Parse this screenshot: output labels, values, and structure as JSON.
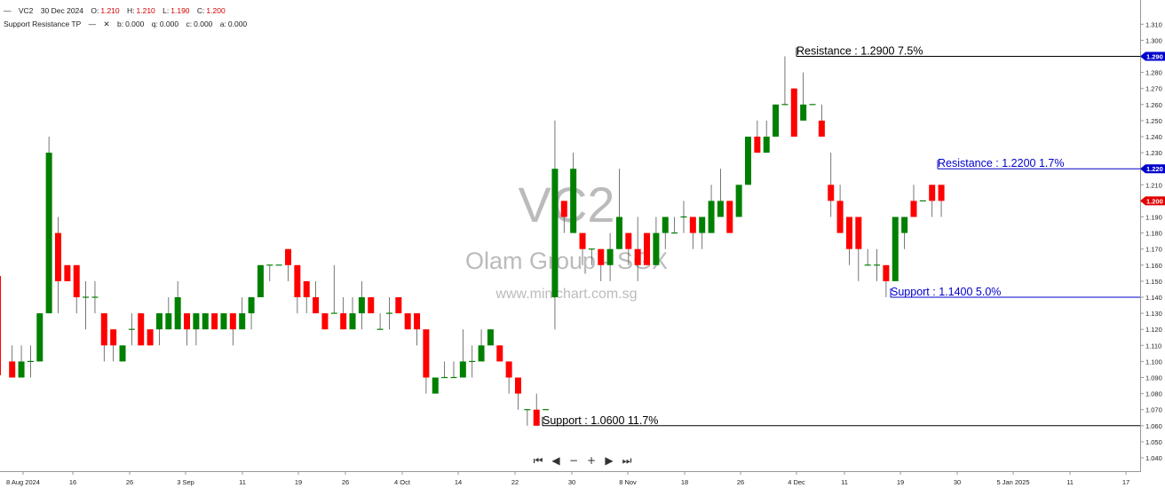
{
  "header": {
    "line1": {
      "icon": "collapse-dash-icon",
      "symbol": "VC2",
      "date": "30 Dec 2024",
      "o_label": "O:",
      "o_value": "1.210",
      "h_label": "H:",
      "h_value": "1.210",
      "l_label": "L:",
      "l_value": "1.190",
      "c_label": "C:",
      "c_value": "1.200"
    },
    "line2": {
      "indicator": "Support Resistance TP",
      "icons": [
        "collapse-dash-icon",
        "close-icon"
      ],
      "b_label": "b:",
      "b_value": "0.000",
      "q_label": "q:",
      "q_value": "0.000",
      "c_label": "c:",
      "c_value": "0.000",
      "a_label": "a:",
      "a_value": "0.000"
    }
  },
  "watermark": {
    "symbol": "VC2",
    "name": "Olam Group - SGX",
    "site": "www.minichart.com.sg"
  },
  "navigation": {
    "buttons": [
      "⏮",
      "◀",
      "−",
      "+",
      "▶",
      "⏭"
    ],
    "icons": [
      "jump-first-icon",
      "scroll-left-icon",
      "zoom-out-icon",
      "zoom-in-icon",
      "scroll-right-icon",
      "jump-last-icon"
    ]
  },
  "colors": {
    "up": "#008000",
    "down": "#ff0000",
    "blue_label": "#0000cc",
    "black_label": "#000000",
    "price_tag_blue": "#0000cc",
    "price_tag_red": "#e00000",
    "watermark": "#bbbbbb"
  },
  "chart_data": {
    "type": "candlestick",
    "ylim": [
      1.04,
      1.31
    ],
    "y_ticks": [
      "1.040",
      "1.050",
      "1.060",
      "1.070",
      "1.080",
      "1.090",
      "1.100",
      "1.110",
      "1.120",
      "1.130",
      "1.140",
      "1.150",
      "1.160",
      "1.170",
      "1.180",
      "1.190",
      "1.200",
      "1.210",
      "1.220",
      "1.230",
      "1.240",
      "1.250",
      "1.260",
      "1.270",
      "1.280",
      "1.290",
      "1.300",
      "1.310"
    ],
    "x_tick_labels": [
      "8 Aug 2024",
      "16",
      "26",
      "3 Sep",
      "11",
      "19",
      "26",
      "4 Oct",
      "14",
      "22",
      "30",
      "8 Nov",
      "18",
      "26",
      "4 Dec",
      "11",
      "19",
      "30",
      "5 Jan 2025",
      "11",
      "17"
    ],
    "price_tags": [
      {
        "value": 1.29,
        "text": "1.290",
        "color": "#0000cc"
      },
      {
        "value": 1.22,
        "text": "1.220",
        "color": "#0000cc"
      },
      {
        "value": 1.2,
        "text": "1.200",
        "color": "#e00000"
      }
    ],
    "levels": [
      {
        "kind": "Resistance",
        "text": "Resistance : 1.2900 7.5%",
        "value": 1.29,
        "color": "#000000"
      },
      {
        "kind": "Resistance",
        "text": "Resistance : 1.2200 1.7%",
        "value": 1.22,
        "color": "#0000cc"
      },
      {
        "kind": "Support",
        "text": "Support : 1.1400 5.0%",
        "value": 1.14,
        "color": "#0000cc"
      },
      {
        "kind": "Support",
        "text": "Support : 1.0600 11.7%",
        "value": 1.06,
        "color": "#000000"
      }
    ],
    "candles": [
      {
        "o": 1.1,
        "h": 1.11,
        "l": 1.09,
        "c": 1.09
      },
      {
        "o": 1.09,
        "h": 1.11,
        "l": 1.09,
        "c": 1.1
      },
      {
        "o": 1.1,
        "h": 1.11,
        "l": 1.09,
        "c": 1.1
      },
      {
        "o": 1.1,
        "h": 1.13,
        "l": 1.1,
        "c": 1.13
      },
      {
        "o": 1.13,
        "h": 1.24,
        "l": 1.13,
        "c": 1.23
      },
      {
        "o": 1.18,
        "h": 1.19,
        "l": 1.13,
        "c": 1.15
      },
      {
        "o": 1.16,
        "h": 1.16,
        "l": 1.15,
        "c": 1.15
      },
      {
        "o": 1.16,
        "h": 1.16,
        "l": 1.13,
        "c": 1.14
      },
      {
        "o": 1.14,
        "h": 1.15,
        "l": 1.12,
        "c": 1.14
      },
      {
        "o": 1.14,
        "h": 1.15,
        "l": 1.13,
        "c": 1.14
      },
      {
        "o": 1.13,
        "h": 1.13,
        "l": 1.1,
        "c": 1.11
      },
      {
        "o": 1.12,
        "h": 1.12,
        "l": 1.1,
        "c": 1.11
      },
      {
        "o": 1.1,
        "h": 1.11,
        "l": 1.1,
        "c": 1.11
      },
      {
        "o": 1.12,
        "h": 1.13,
        "l": 1.11,
        "c": 1.12
      },
      {
        "o": 1.13,
        "h": 1.13,
        "l": 1.11,
        "c": 1.11
      },
      {
        "o": 1.12,
        "h": 1.12,
        "l": 1.11,
        "c": 1.11
      },
      {
        "o": 1.12,
        "h": 1.13,
        "l": 1.11,
        "c": 1.13
      },
      {
        "o": 1.12,
        "h": 1.14,
        "l": 1.12,
        "c": 1.13
      },
      {
        "o": 1.12,
        "h": 1.15,
        "l": 1.12,
        "c": 1.14
      },
      {
        "o": 1.13,
        "h": 1.13,
        "l": 1.11,
        "c": 1.12
      },
      {
        "o": 1.12,
        "h": 1.13,
        "l": 1.11,
        "c": 1.13
      },
      {
        "o": 1.12,
        "h": 1.13,
        "l": 1.12,
        "c": 1.13
      },
      {
        "o": 1.13,
        "h": 1.13,
        "l": 1.12,
        "c": 1.12
      },
      {
        "o": 1.12,
        "h": 1.13,
        "l": 1.12,
        "c": 1.13
      },
      {
        "o": 1.13,
        "h": 1.13,
        "l": 1.11,
        "c": 1.12
      },
      {
        "o": 1.12,
        "h": 1.14,
        "l": 1.12,
        "c": 1.13
      },
      {
        "o": 1.13,
        "h": 1.14,
        "l": 1.12,
        "c": 1.14
      },
      {
        "o": 1.14,
        "h": 1.16,
        "l": 1.14,
        "c": 1.16
      },
      {
        "o": 1.16,
        "h": 1.16,
        "l": 1.15,
        "c": 1.16
      },
      {
        "o": 1.16,
        "h": 1.16,
        "l": 1.16,
        "c": 1.16
      },
      {
        "o": 1.17,
        "h": 1.17,
        "l": 1.15,
        "c": 1.16
      },
      {
        "o": 1.16,
        "h": 1.16,
        "l": 1.13,
        "c": 1.14
      },
      {
        "o": 1.15,
        "h": 1.15,
        "l": 1.13,
        "c": 1.14
      },
      {
        "o": 1.14,
        "h": 1.15,
        "l": 1.13,
        "c": 1.13
      },
      {
        "o": 1.13,
        "h": 1.13,
        "l": 1.12,
        "c": 1.12
      },
      {
        "o": 1.13,
        "h": 1.16,
        "l": 1.13,
        "c": 1.13
      },
      {
        "o": 1.13,
        "h": 1.14,
        "l": 1.12,
        "c": 1.12
      },
      {
        "o": 1.12,
        "h": 1.14,
        "l": 1.12,
        "c": 1.13
      },
      {
        "o": 1.13,
        "h": 1.15,
        "l": 1.12,
        "c": 1.14
      },
      {
        "o": 1.14,
        "h": 1.14,
        "l": 1.13,
        "c": 1.13
      },
      {
        "o": 1.12,
        "h": 1.13,
        "l": 1.12,
        "c": 1.12
      },
      {
        "o": 1.13,
        "h": 1.14,
        "l": 1.12,
        "c": 1.13
      },
      {
        "o": 1.14,
        "h": 1.14,
        "l": 1.13,
        "c": 1.13
      },
      {
        "o": 1.13,
        "h": 1.13,
        "l": 1.12,
        "c": 1.12
      },
      {
        "o": 1.13,
        "h": 1.13,
        "l": 1.11,
        "c": 1.12
      },
      {
        "o": 1.12,
        "h": 1.12,
        "l": 1.08,
        "c": 1.09
      },
      {
        "o": 1.08,
        "h": 1.09,
        "l": 1.08,
        "c": 1.09
      },
      {
        "o": 1.09,
        "h": 1.1,
        "l": 1.09,
        "c": 1.09
      },
      {
        "o": 1.09,
        "h": 1.1,
        "l": 1.09,
        "c": 1.09
      },
      {
        "o": 1.09,
        "h": 1.12,
        "l": 1.09,
        "c": 1.1
      },
      {
        "o": 1.1,
        "h": 1.11,
        "l": 1.09,
        "c": 1.1
      },
      {
        "o": 1.1,
        "h": 1.12,
        "l": 1.1,
        "c": 1.11
      },
      {
        "o": 1.11,
        "h": 1.12,
        "l": 1.11,
        "c": 1.12
      },
      {
        "o": 1.11,
        "h": 1.11,
        "l": 1.1,
        "c": 1.1
      },
      {
        "o": 1.1,
        "h": 1.1,
        "l": 1.08,
        "c": 1.09
      },
      {
        "o": 1.09,
        "h": 1.09,
        "l": 1.07,
        "c": 1.08
      },
      {
        "o": 1.07,
        "h": 1.07,
        "l": 1.06,
        "c": 1.07
      },
      {
        "o": 1.07,
        "h": 1.08,
        "l": 1.06,
        "c": 1.06
      },
      {
        "o": 1.07,
        "h": 1.07,
        "l": 1.07,
        "c": 1.07
      },
      {
        "o": 1.14,
        "h": 1.25,
        "l": 1.12,
        "c": 1.22
      },
      {
        "o": 1.2,
        "h": 1.2,
        "l": 1.18,
        "c": 1.19
      },
      {
        "o": 1.18,
        "h": 1.23,
        "l": 1.18,
        "c": 1.22
      },
      {
        "o": 1.18,
        "h": 1.18,
        "l": 1.16,
        "c": 1.17
      },
      {
        "o": 1.17,
        "h": 1.17,
        "l": 1.16,
        "c": 1.17
      },
      {
        "o": 1.17,
        "h": 1.17,
        "l": 1.15,
        "c": 1.16
      },
      {
        "o": 1.16,
        "h": 1.18,
        "l": 1.15,
        "c": 1.17
      },
      {
        "o": 1.17,
        "h": 1.22,
        "l": 1.17,
        "c": 1.19
      },
      {
        "o": 1.18,
        "h": 1.18,
        "l": 1.16,
        "c": 1.17
      },
      {
        "o": 1.17,
        "h": 1.19,
        "l": 1.15,
        "c": 1.16
      },
      {
        "o": 1.18,
        "h": 1.18,
        "l": 1.16,
        "c": 1.16
      },
      {
        "o": 1.16,
        "h": 1.19,
        "l": 1.16,
        "c": 1.18
      },
      {
        "o": 1.18,
        "h": 1.19,
        "l": 1.17,
        "c": 1.19
      },
      {
        "o": 1.18,
        "h": 1.19,
        "l": 1.18,
        "c": 1.18
      },
      {
        "o": 1.19,
        "h": 1.2,
        "l": 1.18,
        "c": 1.19
      },
      {
        "o": 1.19,
        "h": 1.19,
        "l": 1.17,
        "c": 1.18
      },
      {
        "o": 1.18,
        "h": 1.19,
        "l": 1.17,
        "c": 1.19
      },
      {
        "o": 1.18,
        "h": 1.21,
        "l": 1.18,
        "c": 1.2
      },
      {
        "o": 1.19,
        "h": 1.22,
        "l": 1.19,
        "c": 1.2
      },
      {
        "o": 1.2,
        "h": 1.2,
        "l": 1.18,
        "c": 1.18
      },
      {
        "o": 1.19,
        "h": 1.21,
        "l": 1.19,
        "c": 1.21
      },
      {
        "o": 1.21,
        "h": 1.24,
        "l": 1.21,
        "c": 1.24
      },
      {
        "o": 1.24,
        "h": 1.25,
        "l": 1.23,
        "c": 1.23
      },
      {
        "o": 1.23,
        "h": 1.25,
        "l": 1.23,
        "c": 1.24
      },
      {
        "o": 1.24,
        "h": 1.26,
        "l": 1.24,
        "c": 1.26
      },
      {
        "o": 1.26,
        "h": 1.29,
        "l": 1.26,
        "c": 1.26
      },
      {
        "o": 1.27,
        "h": 1.27,
        "l": 1.24,
        "c": 1.24
      },
      {
        "o": 1.25,
        "h": 1.28,
        "l": 1.25,
        "c": 1.26
      },
      {
        "o": 1.26,
        "h": 1.26,
        "l": 1.26,
        "c": 1.26
      },
      {
        "o": 1.25,
        "h": 1.26,
        "l": 1.24,
        "c": 1.24
      },
      {
        "o": 1.21,
        "h": 1.23,
        "l": 1.19,
        "c": 1.2
      },
      {
        "o": 1.2,
        "h": 1.21,
        "l": 1.18,
        "c": 1.18
      },
      {
        "o": 1.19,
        "h": 1.19,
        "l": 1.16,
        "c": 1.17
      },
      {
        "o": 1.19,
        "h": 1.19,
        "l": 1.15,
        "c": 1.17
      },
      {
        "o": 1.16,
        "h": 1.17,
        "l": 1.16,
        "c": 1.16
      },
      {
        "o": 1.16,
        "h": 1.17,
        "l": 1.15,
        "c": 1.16
      },
      {
        "o": 1.16,
        "h": 1.16,
        "l": 1.14,
        "c": 1.15
      },
      {
        "o": 1.15,
        "h": 1.19,
        "l": 1.15,
        "c": 1.19
      },
      {
        "o": 1.18,
        "h": 1.19,
        "l": 1.17,
        "c": 1.19
      },
      {
        "o": 1.2,
        "h": 1.21,
        "l": 1.19,
        "c": 1.19
      },
      {
        "o": 1.2,
        "h": 1.2,
        "l": 1.2,
        "c": 1.2
      },
      {
        "o": 1.21,
        "h": 1.21,
        "l": 1.19,
        "c": 1.2
      },
      {
        "o": 1.21,
        "h": 1.21,
        "l": 1.19,
        "c": 1.2
      }
    ]
  }
}
